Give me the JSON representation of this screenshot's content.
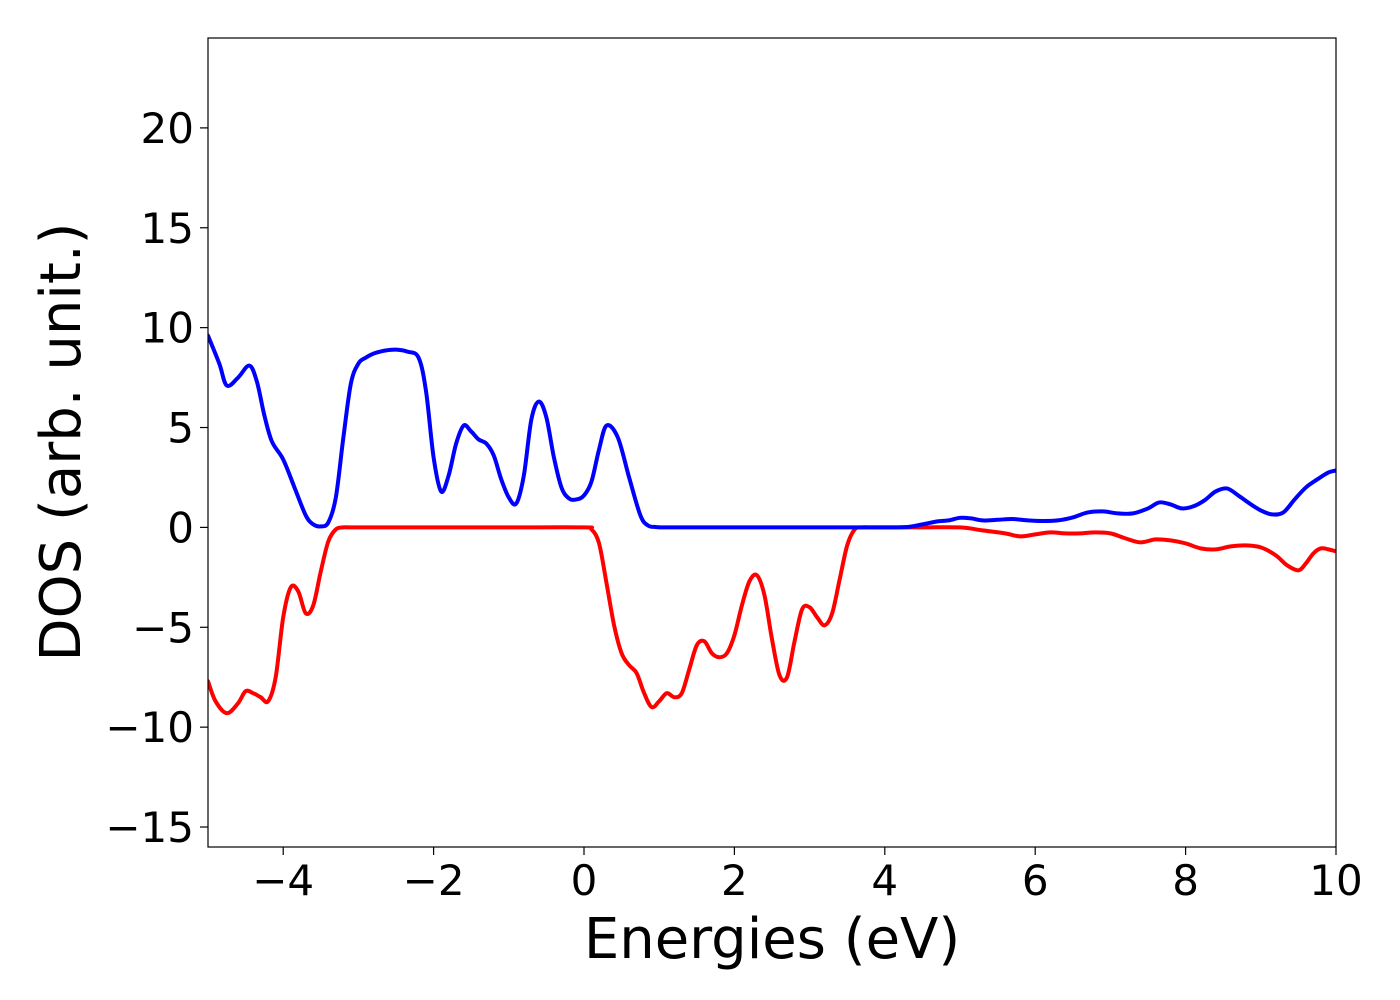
{
  "chart_data": {
    "type": "line",
    "xlabel": "Energies (eV)",
    "ylabel": "DOS (arb. unit.)",
    "xlim": [
      -5,
      10
    ],
    "ylim": [
      -16,
      24.5
    ],
    "xticks": [
      -4,
      -2,
      0,
      2,
      4,
      6,
      8,
      10
    ],
    "xtick_labels": [
      "−4",
      "−2",
      "0",
      "2",
      "4",
      "6",
      "8",
      "10"
    ],
    "yticks": [
      -15,
      -10,
      -5,
      0,
      5,
      10,
      15,
      20
    ],
    "ytick_labels": [
      "−15",
      "−10",
      "−5",
      "0",
      "5",
      "10",
      "15",
      "20"
    ],
    "grid": false,
    "legend": "none",
    "series": [
      {
        "color": "#0000ff",
        "x": [
          -5.0,
          -4.85,
          -4.75,
          -4.6,
          -4.45,
          -4.35,
          -4.25,
          -4.15,
          -4.0,
          -3.85,
          -3.7,
          -3.6,
          -3.5,
          -3.4,
          -3.3,
          -3.2,
          -3.1,
          -3.0,
          -2.9,
          -2.8,
          -2.65,
          -2.5,
          -2.35,
          -2.2,
          -2.1,
          -2.0,
          -1.9,
          -1.8,
          -1.7,
          -1.6,
          -1.5,
          -1.4,
          -1.3,
          -1.2,
          -1.1,
          -1.0,
          -0.9,
          -0.8,
          -0.7,
          -0.6,
          -0.5,
          -0.4,
          -0.3,
          -0.2,
          -0.1,
          0.0,
          0.1,
          0.2,
          0.3,
          0.45,
          0.6,
          0.75,
          0.85,
          0.95,
          1.05,
          1.15,
          1.25,
          1.35,
          1.45,
          1.55,
          1.7,
          2.0,
          3.0,
          4.0,
          4.3,
          4.5,
          4.7,
          4.85,
          5.0,
          5.15,
          5.3,
          5.5,
          5.7,
          5.9,
          6.1,
          6.3,
          6.5,
          6.7,
          6.9,
          7.1,
          7.3,
          7.5,
          7.65,
          7.8,
          7.95,
          8.1,
          8.25,
          8.4,
          8.55,
          8.7,
          8.85,
          9.0,
          9.15,
          9.3,
          9.45,
          9.6,
          9.75,
          9.9,
          10.0
        ],
        "y": [
          9.6,
          8.2,
          7.1,
          7.5,
          8.1,
          7.3,
          5.6,
          4.3,
          3.4,
          2.0,
          0.6,
          0.15,
          0.05,
          0.25,
          1.5,
          4.5,
          7.2,
          8.2,
          8.5,
          8.7,
          8.85,
          8.9,
          8.8,
          8.5,
          6.8,
          3.5,
          1.8,
          2.6,
          4.2,
          5.1,
          4.8,
          4.4,
          4.2,
          3.6,
          2.4,
          1.5,
          1.2,
          2.6,
          5.4,
          6.3,
          5.5,
          3.5,
          2.0,
          1.45,
          1.4,
          1.6,
          2.3,
          3.9,
          5.1,
          4.5,
          2.5,
          0.6,
          0.1,
          0.02,
          0.0,
          0.0,
          0.0,
          0.0,
          0.0,
          0.0,
          0.0,
          0.0,
          0.0,
          0.0,
          0.02,
          0.15,
          0.3,
          0.35,
          0.48,
          0.45,
          0.35,
          0.38,
          0.42,
          0.35,
          0.32,
          0.35,
          0.5,
          0.75,
          0.8,
          0.7,
          0.7,
          0.95,
          1.25,
          1.15,
          0.95,
          1.05,
          1.35,
          1.8,
          1.95,
          1.6,
          1.2,
          0.85,
          0.65,
          0.75,
          1.4,
          2.0,
          2.4,
          2.75,
          2.85
        ]
      },
      {
        "color": "#ff0000",
        "x": [
          -5.0,
          -4.9,
          -4.75,
          -4.6,
          -4.5,
          -4.4,
          -4.3,
          -4.2,
          -4.1,
          -4.0,
          -3.9,
          -3.8,
          -3.7,
          -3.6,
          -3.5,
          -3.4,
          -3.3,
          -3.2,
          -3.1,
          -3.0,
          -2.9,
          -2.7,
          -2.0,
          -1.0,
          0.0,
          0.1,
          0.2,
          0.3,
          0.4,
          0.5,
          0.6,
          0.7,
          0.8,
          0.9,
          1.0,
          1.1,
          1.2,
          1.3,
          1.4,
          1.5,
          1.6,
          1.7,
          1.8,
          1.9,
          2.0,
          2.1,
          2.2,
          2.3,
          2.4,
          2.5,
          2.6,
          2.7,
          2.8,
          2.9,
          3.0,
          3.1,
          3.2,
          3.3,
          3.4,
          3.5,
          3.6,
          3.7,
          3.8,
          3.9,
          4.0,
          4.5,
          5.0,
          5.3,
          5.6,
          5.8,
          6.0,
          6.2,
          6.4,
          6.6,
          6.8,
          7.0,
          7.2,
          7.4,
          7.6,
          7.8,
          8.0,
          8.2,
          8.4,
          8.6,
          8.8,
          9.0,
          9.2,
          9.35,
          9.5,
          9.6,
          9.7,
          9.8,
          9.9,
          10.0
        ],
        "y": [
          -7.7,
          -8.7,
          -9.3,
          -8.8,
          -8.2,
          -8.3,
          -8.5,
          -8.7,
          -7.5,
          -4.5,
          -3.0,
          -3.2,
          -4.3,
          -3.9,
          -2.2,
          -0.7,
          -0.1,
          0.0,
          0.0,
          0.0,
          0.0,
          0.0,
          0.0,
          0.0,
          0.0,
          -0.1,
          -0.8,
          -2.8,
          -4.9,
          -6.3,
          -6.9,
          -7.3,
          -8.3,
          -9.0,
          -8.7,
          -8.3,
          -8.5,
          -8.3,
          -7.1,
          -5.9,
          -5.7,
          -6.3,
          -6.5,
          -6.3,
          -5.4,
          -3.9,
          -2.7,
          -2.4,
          -3.4,
          -5.6,
          -7.4,
          -7.5,
          -5.7,
          -4.1,
          -4.0,
          -4.5,
          -4.9,
          -4.3,
          -2.6,
          -0.9,
          -0.1,
          0.0,
          0.0,
          0.0,
          0.0,
          0.0,
          0.0,
          -0.15,
          -0.3,
          -0.45,
          -0.35,
          -0.25,
          -0.3,
          -0.3,
          -0.25,
          -0.3,
          -0.55,
          -0.75,
          -0.6,
          -0.65,
          -0.8,
          -1.05,
          -1.1,
          -0.95,
          -0.9,
          -1.0,
          -1.4,
          -1.9,
          -2.15,
          -1.8,
          -1.3,
          -1.05,
          -1.1,
          -1.2
        ]
      }
    ]
  }
}
